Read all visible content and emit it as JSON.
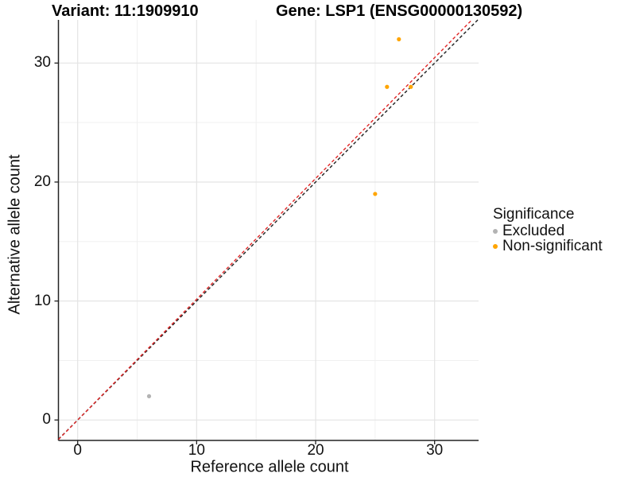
{
  "chart_data": {
    "type": "scatter",
    "titles": {
      "variant": "Variant: 11:1909910",
      "gene": "Gene: LSP1 (ENSG00000130592)"
    },
    "xlabel": "Reference allele count",
    "ylabel": "Alternative allele count",
    "xlim": [
      -1.65,
      33.7
    ],
    "ylim": [
      -1.72,
      33.6
    ],
    "x_ticks": [
      0,
      10,
      20,
      30
    ],
    "y_ticks": [
      0,
      10,
      20,
      30
    ],
    "x_minor_ticks": [
      5,
      15,
      25
    ],
    "y_minor_ticks": [
      5,
      15,
      25
    ],
    "grid": true,
    "legend": {
      "title": "Significance",
      "position": "right",
      "entries": [
        {
          "label": "Excluded",
          "color": "#b3b3b3"
        },
        {
          "label": "Non-significant",
          "color": "#ffa500"
        }
      ]
    },
    "series": [
      {
        "name": "Excluded",
        "color": "#b3b3b3",
        "points": [
          {
            "x": 6,
            "y": 2
          }
        ]
      },
      {
        "name": "Non-significant",
        "color": "#ffa500",
        "points": [
          {
            "x": 25,
            "y": 19
          },
          {
            "x": 26,
            "y": 28
          },
          {
            "x": 28,
            "y": 28
          },
          {
            "x": 27,
            "y": 32
          }
        ]
      }
    ],
    "reference_lines": [
      {
        "name": "identity-line",
        "slope": 1.0,
        "intercept": 0,
        "color": "#1c1c1c",
        "style": "dashed"
      },
      {
        "name": "expected-line",
        "slope": 1.015,
        "intercept": 0,
        "color": "#e02525",
        "style": "dashed"
      }
    ],
    "colors": {
      "background": "#ffffff",
      "grid_major": "#e4e4e4",
      "grid_minor": "#f0f0f0",
      "axis": "#222222",
      "tick_text": "#111111"
    }
  }
}
